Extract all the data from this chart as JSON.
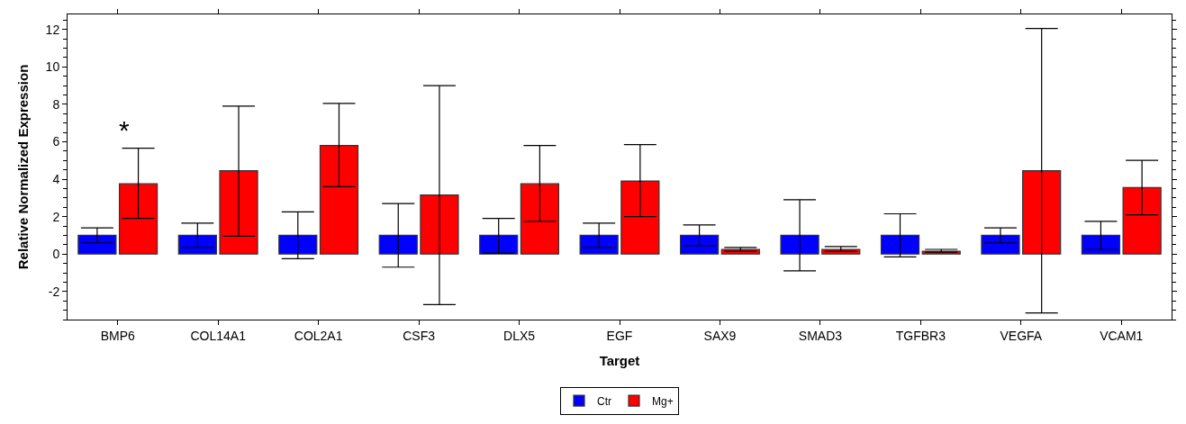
{
  "chart_data": {
    "type": "bar",
    "xlabel": "Target",
    "ylabel": "Relative Normalized Expression",
    "categories": [
      "BMP6",
      "COL14A1",
      "COL2A1",
      "CSF3",
      "DLX5",
      "EGF",
      "SAX9",
      "SMAD3",
      "TGFBR3",
      "VEGFA",
      "VCAM1"
    ],
    "series": [
      {
        "name": "Ctr",
        "color": "#0000ff",
        "values": [
          1,
          1,
          1,
          1,
          1,
          1,
          1,
          1,
          1,
          1,
          1
        ],
        "errors": [
          [
            0.6,
            1.4
          ],
          [
            0.35,
            1.65
          ],
          [
            -0.25,
            2.25
          ],
          [
            -0.7,
            2.7
          ],
          [
            0.05,
            1.9
          ],
          [
            0.35,
            1.65
          ],
          [
            0.45,
            1.55
          ],
          [
            -0.9,
            2.9
          ],
          [
            -0.15,
            2.15
          ],
          [
            0.6,
            1.4
          ],
          [
            0.25,
            1.75
          ]
        ]
      },
      {
        "name": "Mg+",
        "color": "#ff0000",
        "values": [
          3.75,
          4.45,
          5.8,
          3.15,
          3.75,
          3.9,
          0.25,
          0.25,
          0.15,
          4.45,
          3.55
        ],
        "errors": [
          [
            1.9,
            5.65
          ],
          [
            0.95,
            7.9
          ],
          [
            3.6,
            8.05
          ],
          [
            -2.7,
            9.0
          ],
          [
            1.75,
            5.8
          ],
          [
            2.0,
            5.85
          ],
          [
            0.15,
            0.35
          ],
          [
            0.15,
            0.4
          ],
          [
            0.1,
            0.25
          ],
          [
            -3.15,
            12.05
          ],
          [
            2.1,
            5.0
          ]
        ]
      }
    ],
    "ylim": [
      -3.5,
      12.8
    ],
    "yticks": [
      -2,
      0,
      2,
      4,
      6,
      8,
      10,
      12
    ],
    "annotations": [
      "*"
    ],
    "legend": "bottom"
  }
}
